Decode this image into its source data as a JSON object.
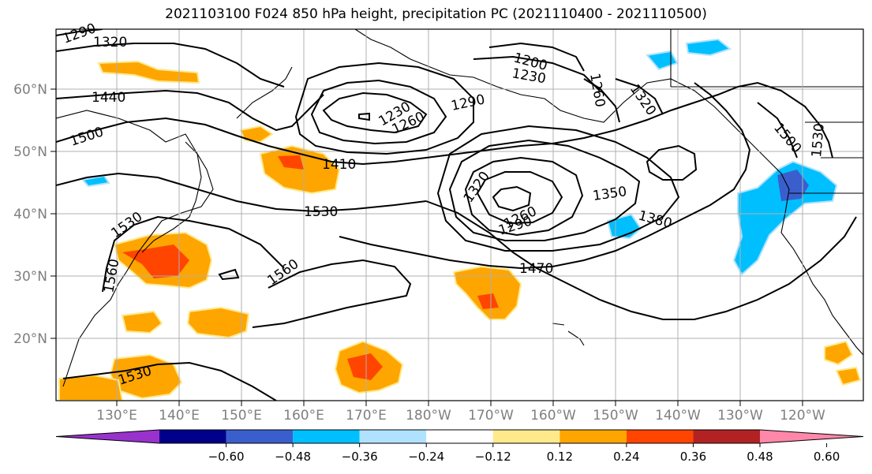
{
  "title": "2021103100 F024 850 hPa height, precipitation PC (2021110400 - 2021110500)",
  "map": {
    "lat_labels": [
      "60°N",
      "50°N",
      "40°N",
      "30°N",
      "20°N"
    ],
    "lon_labels": [
      "130°E",
      "140°E",
      "150°E",
      "160°E",
      "170°E",
      "180°W",
      "170°W",
      "160°W",
      "150°W",
      "140°W",
      "130°W",
      "120°W"
    ],
    "contour_labels": [
      "1290",
      "1320",
      "1440",
      "1500",
      "1230",
      "1260",
      "1290",
      "1200",
      "1230",
      "1260",
      "1320",
      "1500",
      "1530",
      "1410",
      "1530",
      "1320",
      "1350",
      "1260",
      "1290",
      "1380",
      "1530",
      "1560",
      "1560",
      "1470",
      "1530"
    ]
  },
  "colorbar": {
    "ticks": [
      "−0.60",
      "−0.48",
      "−0.36",
      "−0.24",
      "−0.12",
      "0.12",
      "0.24",
      "0.36",
      "0.48",
      "0.60"
    ],
    "colors": [
      "#9932cc",
      "#00008b",
      "#3a5fcd",
      "#00bfff",
      "#b0e2ff",
      "#ffffff",
      "#ffe98b",
      "#ffa500",
      "#ff4500",
      "#b22222",
      "#ff88aa"
    ]
  }
}
